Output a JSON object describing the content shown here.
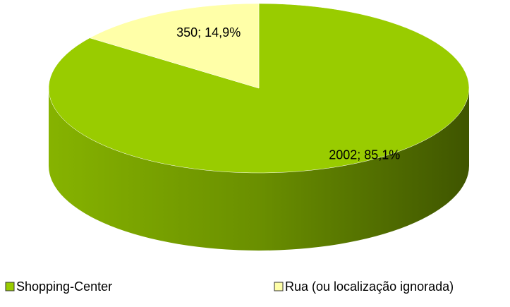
{
  "chart_data": {
    "type": "pie3d",
    "categories": [
      "Shopping-Center",
      "Rua (ou localização ignorada)"
    ],
    "values": [
      2002,
      350
    ],
    "value_labels": [
      "2002; 85,1%",
      "350; 14,9%"
    ],
    "colors": [
      "#99cc00",
      "#ffffa8"
    ],
    "legend": "bottom"
  }
}
